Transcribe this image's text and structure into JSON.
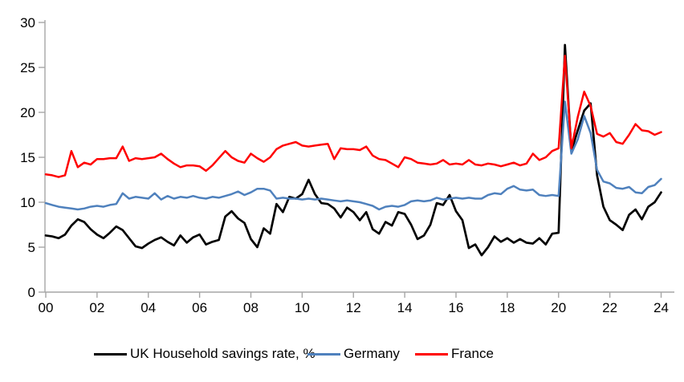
{
  "chart_data": {
    "type": "line",
    "title": "",
    "xlabel": "",
    "ylabel": "",
    "grid": "off",
    "legend_position": "bottom",
    "axis_color": "#a6a6a6",
    "background_color": "#ffffff",
    "x_start_year": 2000,
    "x_step_years": 0.25,
    "x_axis": {
      "tick_years": [
        2000,
        2002,
        2004,
        2006,
        2008,
        2010,
        2012,
        2014,
        2016,
        2018,
        2020,
        2022,
        2024
      ],
      "tick_labels": [
        "00",
        "02",
        "04",
        "06",
        "08",
        "10",
        "12",
        "14",
        "16",
        "18",
        "20",
        "22",
        "24"
      ]
    },
    "y_axis": {
      "min": 0,
      "max": 30,
      "tick_interval": 5,
      "tick_labels": [
        "0",
        "5",
        "10",
        "15",
        "20",
        "25",
        "30"
      ]
    },
    "series": [
      {
        "name": "UK Household savings rate, %",
        "color": "#000000",
        "values": [
          6.3,
          6.2,
          6.0,
          6.4,
          7.4,
          8.1,
          7.8,
          7.0,
          6.4,
          6.0,
          6.6,
          7.3,
          6.9,
          6.0,
          5.1,
          4.9,
          5.4,
          5.8,
          6.1,
          5.6,
          5.2,
          6.3,
          5.5,
          6.1,
          6.4,
          5.3,
          5.6,
          5.8,
          8.4,
          9.0,
          8.2,
          7.7,
          5.9,
          5.0,
          7.1,
          6.5,
          9.8,
          8.9,
          10.6,
          10.4,
          10.9,
          12.5,
          10.9,
          9.9,
          9.8,
          9.3,
          8.3,
          9.4,
          8.9,
          8.0,
          8.9,
          7.0,
          6.5,
          7.8,
          7.4,
          8.9,
          8.7,
          7.5,
          5.9,
          6.3,
          7.5,
          9.9,
          9.7,
          10.8,
          9.0,
          8.0,
          4.9,
          5.3,
          4.1,
          5.0,
          6.2,
          5.6,
          6.0,
          5.5,
          5.9,
          5.5,
          5.4,
          6.0,
          5.3,
          6.5,
          6.6,
          27.5,
          15.7,
          18.0,
          20.2,
          21.0,
          13.0,
          9.5,
          8.0,
          7.5,
          6.9,
          8.6,
          9.2,
          8.1,
          9.5,
          10.0,
          11.1
        ]
      },
      {
        "name": "Germany",
        "color": "#4f81bd",
        "values": [
          9.9,
          9.7,
          9.5,
          9.4,
          9.3,
          9.2,
          9.3,
          9.5,
          9.6,
          9.5,
          9.7,
          9.8,
          11.0,
          10.4,
          10.6,
          10.5,
          10.4,
          11.0,
          10.3,
          10.7,
          10.4,
          10.6,
          10.5,
          10.7,
          10.5,
          10.4,
          10.6,
          10.5,
          10.7,
          10.9,
          11.2,
          10.8,
          11.1,
          11.5,
          11.5,
          11.3,
          10.4,
          10.5,
          10.4,
          10.4,
          10.3,
          10.4,
          10.3,
          10.4,
          10.3,
          10.2,
          10.1,
          10.2,
          10.1,
          10.0,
          9.8,
          9.6,
          9.2,
          9.5,
          9.6,
          9.5,
          9.7,
          10.1,
          10.2,
          10.1,
          10.2,
          10.5,
          10.3,
          10.4,
          10.5,
          10.4,
          10.5,
          10.4,
          10.4,
          10.8,
          11.0,
          10.9,
          11.5,
          11.8,
          11.4,
          11.3,
          11.4,
          10.8,
          10.7,
          10.8,
          10.7,
          21.2,
          15.4,
          17.0,
          19.6,
          17.7,
          13.6,
          12.3,
          12.1,
          11.6,
          11.5,
          11.7,
          11.1,
          11.0,
          11.7,
          11.9,
          12.6
        ]
      },
      {
        "name": "France",
        "color": "#ff0000",
        "values": [
          13.1,
          13.0,
          12.8,
          13.0,
          15.7,
          13.9,
          14.4,
          14.2,
          14.8,
          14.8,
          14.9,
          14.9,
          16.2,
          14.6,
          14.9,
          14.8,
          14.9,
          15.0,
          15.4,
          14.8,
          14.3,
          13.9,
          14.1,
          14.1,
          14.0,
          13.5,
          14.1,
          14.9,
          15.7,
          15.0,
          14.6,
          14.4,
          15.4,
          14.9,
          14.5,
          15.0,
          15.9,
          16.3,
          16.5,
          16.7,
          16.3,
          16.2,
          16.3,
          16.4,
          16.5,
          14.8,
          16.0,
          15.9,
          15.9,
          15.8,
          16.2,
          15.2,
          14.8,
          14.7,
          14.3,
          13.9,
          15.0,
          14.8,
          14.4,
          14.3,
          14.2,
          14.3,
          14.7,
          14.2,
          14.3,
          14.2,
          14.7,
          14.2,
          14.1,
          14.3,
          14.2,
          14.0,
          14.2,
          14.4,
          14.1,
          14.3,
          15.4,
          14.7,
          15.0,
          15.7,
          16.0,
          26.3,
          16.0,
          19.5,
          22.3,
          20.7,
          17.6,
          17.3,
          17.7,
          16.7,
          16.5,
          17.5,
          18.7,
          18.0,
          17.9,
          17.5,
          17.8
        ]
      }
    ]
  }
}
